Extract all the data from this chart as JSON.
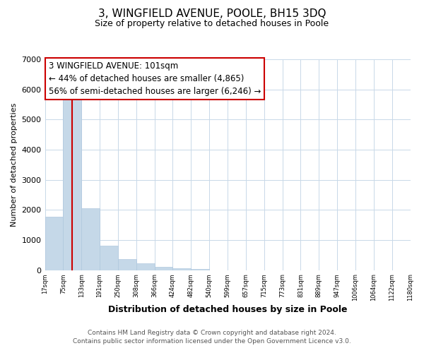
{
  "title": "3, WINGFIELD AVENUE, POOLE, BH15 3DQ",
  "subtitle": "Size of property relative to detached houses in Poole",
  "xlabel": "Distribution of detached houses by size in Poole",
  "ylabel": "Number of detached properties",
  "bar_values": [
    1780,
    5780,
    2060,
    810,
    370,
    220,
    110,
    55,
    30,
    0,
    0,
    0,
    0,
    0,
    0,
    0,
    0,
    0,
    0,
    0
  ],
  "bar_labels": [
    "17sqm",
    "75sqm",
    "133sqm",
    "191sqm",
    "250sqm",
    "308sqm",
    "366sqm",
    "424sqm",
    "482sqm",
    "540sqm",
    "599sqm",
    "657sqm",
    "715sqm",
    "773sqm",
    "831sqm",
    "889sqm",
    "947sqm",
    "1006sqm",
    "1064sqm",
    "1122sqm",
    "1180sqm"
  ],
  "bar_color": "#c5d8e8",
  "bar_edge_color": "#b0c8de",
  "vline_color": "#cc0000",
  "annotation_text": "3 WINGFIELD AVENUE: 101sqm\n← 44% of detached houses are smaller (4,865)\n56% of semi-detached houses are larger (6,246) →",
  "box_edge_color": "#cc0000",
  "ylim": [
    0,
    7000
  ],
  "yticks": [
    0,
    1000,
    2000,
    3000,
    4000,
    5000,
    6000,
    7000
  ],
  "footer_line1": "Contains HM Land Registry data © Crown copyright and database right 2024.",
  "footer_line2": "Contains public sector information licensed under the Open Government Licence v3.0.",
  "bg_color": "#ffffff",
  "grid_color": "#c8d8e8",
  "title_fontsize": 11,
  "subtitle_fontsize": 9,
  "annotation_fontsize": 8.5,
  "footer_fontsize": 6.5,
  "xlabel_fontsize": 9,
  "ylabel_fontsize": 8
}
